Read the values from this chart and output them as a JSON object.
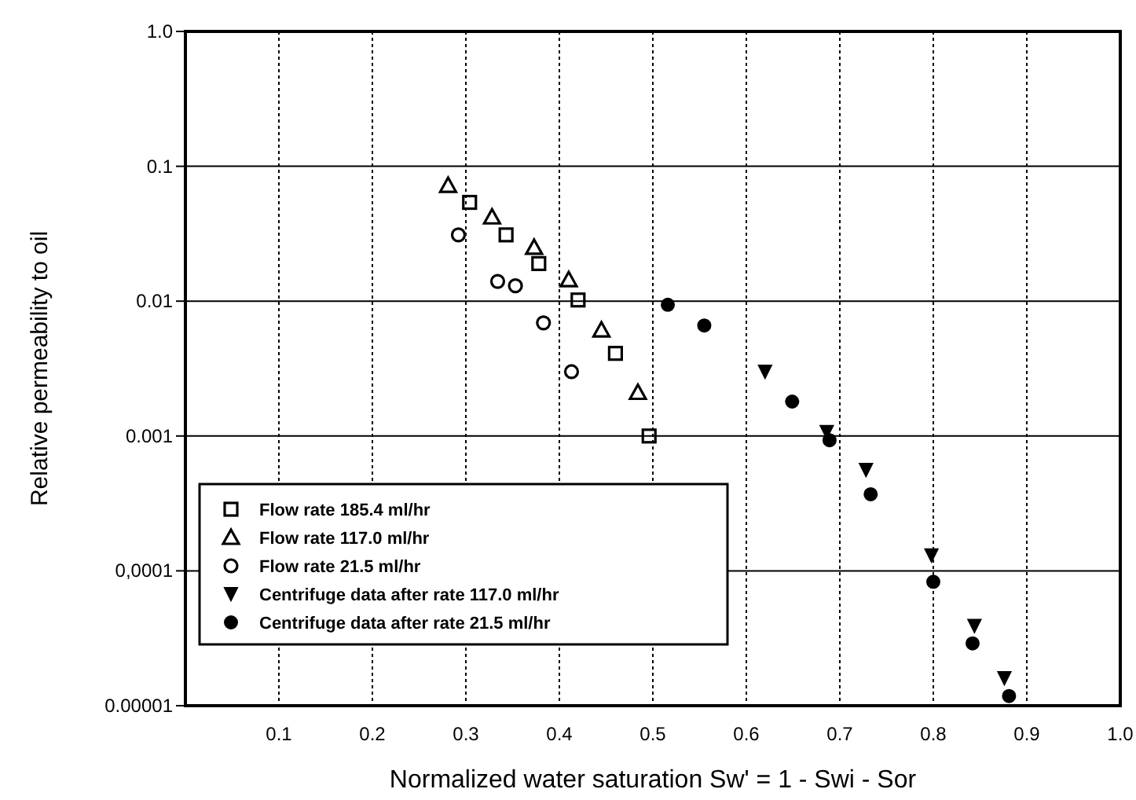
{
  "chart_data": {
    "type": "scatter",
    "xlabel": "Normalized water saturation  Sw' = 1 - Swi - Sor",
    "ylabel": "Relative permeability to oil",
    "xlim": [
      0,
      1
    ],
    "xticks": [
      0.1,
      0.2,
      0.3,
      0.4,
      0.5,
      0.6,
      0.7,
      0.8,
      0.9,
      {
        "value": 1,
        "label": "1.0"
      }
    ],
    "ylim": [
      1e-05,
      1
    ],
    "yticks": [
      {
        "value": 1,
        "label": "1.0"
      },
      0.1,
      0.01,
      0.001,
      {
        "value": 0.0001,
        "label": "0,0001"
      },
      {
        "value": 1e-05,
        "label": "0.00001"
      }
    ],
    "log": "y",
    "grid": true,
    "legend": "bottom left",
    "series": [
      {
        "name": "Flow rate  185.4 ml/hr",
        "color": "#000000",
        "marker": "square",
        "x": [
          0.304,
          0.343,
          0.378,
          0.42,
          0.46,
          0.496
        ],
        "values": [
          0.054,
          0.031,
          0.019,
          0.0102,
          0.0041,
          0.001
        ]
      },
      {
        "name": "Flow rate  117.0 ml/hr",
        "color": "#000000",
        "marker": "triangle",
        "x": [
          0.281,
          0.328,
          0.373,
          0.41,
          0.445,
          0.484
        ],
        "values": [
          0.072,
          0.042,
          0.025,
          0.0144,
          0.0061,
          0.0021
        ]
      },
      {
        "name": "Flow rate  21.5 ml/hr",
        "color": "#000000",
        "marker": "circle",
        "x": [
          0.292,
          0.334,
          0.353,
          0.383,
          0.413
        ],
        "values": [
          0.031,
          0.014,
          0.013,
          0.0069,
          0.003
        ]
      },
      {
        "name": "Centrifuge data after rate 117.0 ml/hr",
        "color": "#000000",
        "marker": "triangle-down",
        "x": [
          0.62,
          0.686,
          0.728,
          0.798,
          0.844,
          0.876
        ],
        "values": [
          0.003,
          0.00107,
          0.00056,
          0.00013,
          3.9e-05,
          1.6e-05
        ]
      },
      {
        "name": "Centrifuge data after rate 21.5 ml/hr",
        "color": "#000000",
        "marker": "filled-circle",
        "x": [
          0.516,
          0.555,
          0.649,
          0.689,
          0.733,
          0.8,
          0.842,
          0.881
        ],
        "values": [
          0.0094,
          0.0066,
          0.0018,
          0.00093,
          0.00037,
          8.3e-05,
          2.9e-05,
          1.18e-05
        ]
      }
    ]
  }
}
